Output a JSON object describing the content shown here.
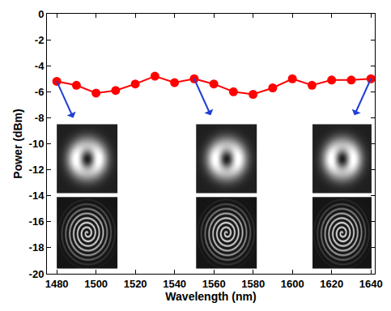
{
  "chart_data": {
    "type": "line",
    "xlabel": "Wavelength (nm)",
    "ylabel": "Power (dBm)",
    "x": [
      1480,
      1490,
      1500,
      1510,
      1520,
      1530,
      1540,
      1550,
      1560,
      1570,
      1580,
      1590,
      1600,
      1610,
      1620,
      1630,
      1640
    ],
    "values": [
      -5.2,
      -5.5,
      -6.1,
      -5.9,
      -5.4,
      -4.8,
      -5.3,
      -5.0,
      -5.4,
      -6.0,
      -6.2,
      -5.7,
      -5.0,
      -5.5,
      -5.1,
      -5.1,
      -5.0
    ],
    "color": "#ff0000",
    "marker": "circle",
    "line_style": "solid",
    "xlim": [
      1475,
      1642
    ],
    "ylim": [
      -20,
      0
    ],
    "xticks": [
      1480,
      1500,
      1520,
      1540,
      1560,
      1580,
      1600,
      1620,
      1640
    ],
    "yticks": [
      -20,
      -18,
      -16,
      -14,
      -12,
      -10,
      -8,
      -6,
      -4,
      -2,
      0
    ],
    "grid": false
  }
}
